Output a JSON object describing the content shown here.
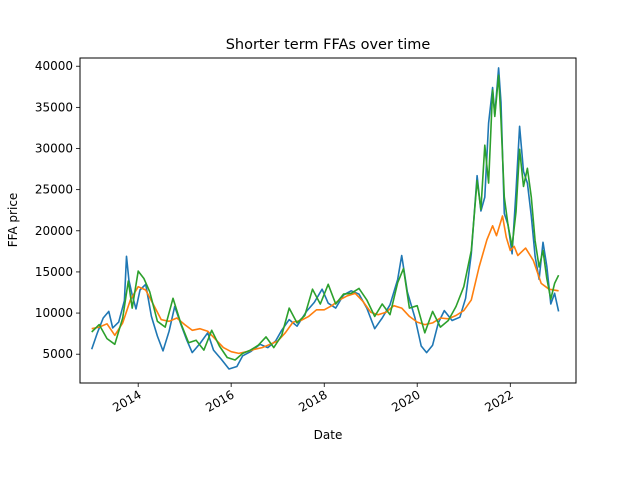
{
  "chart_data": {
    "type": "line",
    "title": "Shorter term FFAs over time",
    "xlabel": "Date",
    "ylabel": "FFA price",
    "xlim": [
      "2012-10-01",
      "2023-06-01"
    ],
    "ylim": [
      1500,
      41000
    ],
    "x_ticks": [
      "2014",
      "2016",
      "2018",
      "2020",
      "2022"
    ],
    "y_ticks": [
      "5000",
      "10000",
      "15000",
      "20000",
      "25000",
      "30000",
      "35000",
      "40000"
    ],
    "grid": false,
    "series": [
      {
        "color": "#1f77b4",
        "points": [
          [
            "2013-01-01",
            5600
          ],
          [
            "2013-02-15",
            7600
          ],
          [
            "2013-04-01",
            9400
          ],
          [
            "2013-05-15",
            10200
          ],
          [
            "2013-06-15",
            8200
          ],
          [
            "2013-08-01",
            8900
          ],
          [
            "2013-09-15",
            11500
          ],
          [
            "2013-10-01",
            16900
          ],
          [
            "2013-10-20",
            14000
          ],
          [
            "2013-11-15",
            12200
          ],
          [
            "2013-12-15",
            10500
          ],
          [
            "2014-01-15",
            12800
          ],
          [
            "2014-03-01",
            13500
          ],
          [
            "2014-04-15",
            9600
          ],
          [
            "2014-06-01",
            7200
          ],
          [
            "2014-07-15",
            5400
          ],
          [
            "2014-09-01",
            7800
          ],
          [
            "2014-10-15",
            10800
          ],
          [
            "2014-12-01",
            8700
          ],
          [
            "2015-01-15",
            6800
          ],
          [
            "2015-03-01",
            5200
          ],
          [
            "2015-05-01",
            6300
          ],
          [
            "2015-07-01",
            7600
          ],
          [
            "2015-08-15",
            5500
          ],
          [
            "2015-10-15",
            4400
          ],
          [
            "2015-12-15",
            3200
          ],
          [
            "2016-02-15",
            3500
          ],
          [
            "2016-04-01",
            4800
          ],
          [
            "2016-06-01",
            5300
          ],
          [
            "2016-08-15",
            6200
          ],
          [
            "2016-10-15",
            5800
          ],
          [
            "2016-12-15",
            6600
          ],
          [
            "2017-02-01",
            7900
          ],
          [
            "2017-04-01",
            9200
          ],
          [
            "2017-06-01",
            8400
          ],
          [
            "2017-08-15",
            10200
          ],
          [
            "2017-10-15",
            11300
          ],
          [
            "2017-12-15",
            12900
          ],
          [
            "2018-02-01",
            11200
          ],
          [
            "2018-04-01",
            10600
          ],
          [
            "2018-06-01",
            12200
          ],
          [
            "2018-08-01",
            12700
          ],
          [
            "2018-10-01",
            12300
          ],
          [
            "2018-12-01",
            10600
          ],
          [
            "2019-02-01",
            8100
          ],
          [
            "2019-04-01",
            9400
          ],
          [
            "2019-06-01",
            11000
          ],
          [
            "2019-08-01",
            14100
          ],
          [
            "2019-09-01",
            17000
          ],
          [
            "2019-10-15",
            12600
          ],
          [
            "2019-12-15",
            9400
          ],
          [
            "2020-02-01",
            6000
          ],
          [
            "2020-03-15",
            5200
          ],
          [
            "2020-05-01",
            6100
          ],
          [
            "2020-06-15",
            8800
          ],
          [
            "2020-08-01",
            10300
          ],
          [
            "2020-10-01",
            9100
          ],
          [
            "2020-12-01",
            9500
          ],
          [
            "2021-01-15",
            11800
          ],
          [
            "2021-03-01",
            17200
          ],
          [
            "2021-04-15",
            26700
          ],
          [
            "2021-05-15",
            22400
          ],
          [
            "2021-06-15",
            24100
          ],
          [
            "2021-07-15",
            33100
          ],
          [
            "2021-08-15",
            37400
          ],
          [
            "2021-09-01",
            34100
          ],
          [
            "2021-10-01",
            39800
          ],
          [
            "2021-10-20",
            35600
          ],
          [
            "2021-11-15",
            22100
          ],
          [
            "2021-12-15",
            20700
          ],
          [
            "2022-01-15",
            17200
          ],
          [
            "2022-02-15",
            24800
          ],
          [
            "2022-03-15",
            32700
          ],
          [
            "2022-04-15",
            27200
          ],
          [
            "2022-05-15",
            25800
          ],
          [
            "2022-06-15",
            21800
          ],
          [
            "2022-07-15",
            16900
          ],
          [
            "2022-08-15",
            14100
          ],
          [
            "2022-09-15",
            18600
          ],
          [
            "2022-10-15",
            15700
          ],
          [
            "2022-11-15",
            11100
          ],
          [
            "2022-12-15",
            12400
          ],
          [
            "2023-01-15",
            10200
          ]
        ]
      },
      {
        "color": "#ff7f0e",
        "points": [
          [
            "2013-01-01",
            8100
          ],
          [
            "2013-03-01",
            8300
          ],
          [
            "2013-05-01",
            8700
          ],
          [
            "2013-07-01",
            7300
          ],
          [
            "2013-09-01",
            8800
          ],
          [
            "2013-11-01",
            11600
          ],
          [
            "2014-01-01",
            13200
          ],
          [
            "2014-03-01",
            12800
          ],
          [
            "2014-05-01",
            11000
          ],
          [
            "2014-07-01",
            9200
          ],
          [
            "2014-09-01",
            9000
          ],
          [
            "2014-11-01",
            9400
          ],
          [
            "2015-01-01",
            8600
          ],
          [
            "2015-03-01",
            7900
          ],
          [
            "2015-05-01",
            8100
          ],
          [
            "2015-07-01",
            7800
          ],
          [
            "2015-09-01",
            6800
          ],
          [
            "2015-11-01",
            5800
          ],
          [
            "2016-01-01",
            5300
          ],
          [
            "2016-03-01",
            5100
          ],
          [
            "2016-05-01",
            5300
          ],
          [
            "2016-07-01",
            5600
          ],
          [
            "2016-09-01",
            5800
          ],
          [
            "2016-11-01",
            6200
          ],
          [
            "2017-01-01",
            6600
          ],
          [
            "2017-03-01",
            7600
          ],
          [
            "2017-05-01",
            8900
          ],
          [
            "2017-07-01",
            9100
          ],
          [
            "2017-09-01",
            9600
          ],
          [
            "2017-11-01",
            10400
          ],
          [
            "2018-01-01",
            10400
          ],
          [
            "2018-03-01",
            10900
          ],
          [
            "2018-05-01",
            11600
          ],
          [
            "2018-07-01",
            12100
          ],
          [
            "2018-09-01",
            12400
          ],
          [
            "2018-11-01",
            11400
          ],
          [
            "2019-01-01",
            10100
          ],
          [
            "2019-03-01",
            9800
          ],
          [
            "2019-05-01",
            10100
          ],
          [
            "2019-07-01",
            10900
          ],
          [
            "2019-09-01",
            10600
          ],
          [
            "2019-11-01",
            9600
          ],
          [
            "2020-01-01",
            8900
          ],
          [
            "2020-03-01",
            8600
          ],
          [
            "2020-05-01",
            8800
          ],
          [
            "2020-07-01",
            9400
          ],
          [
            "2020-09-01",
            9300
          ],
          [
            "2020-11-01",
            9700
          ],
          [
            "2021-01-01",
            10300
          ],
          [
            "2021-03-01",
            11600
          ],
          [
            "2021-05-01",
            15600
          ],
          [
            "2021-07-01",
            18900
          ],
          [
            "2021-08-15",
            20600
          ],
          [
            "2021-09-15",
            19400
          ],
          [
            "2021-11-01",
            21800
          ],
          [
            "2021-12-01",
            19200
          ],
          [
            "2022-01-01",
            17600
          ],
          [
            "2022-02-01",
            18100
          ],
          [
            "2022-03-01",
            17000
          ],
          [
            "2022-05-01",
            17900
          ],
          [
            "2022-07-01",
            16400
          ],
          [
            "2022-09-01",
            13600
          ],
          [
            "2022-11-01",
            12900
          ],
          [
            "2023-01-15",
            12700
          ]
        ]
      },
      {
        "color": "#2ca02c",
        "points": [
          [
            "2013-01-01",
            7700
          ],
          [
            "2013-03-01",
            8600
          ],
          [
            "2013-05-01",
            6900
          ],
          [
            "2013-07-01",
            6200
          ],
          [
            "2013-09-01",
            9400
          ],
          [
            "2013-10-15",
            13900
          ],
          [
            "2013-11-15",
            10600
          ],
          [
            "2014-01-01",
            15100
          ],
          [
            "2014-02-15",
            14200
          ],
          [
            "2014-04-01",
            12600
          ],
          [
            "2014-06-01",
            9000
          ],
          [
            "2014-08-01",
            8300
          ],
          [
            "2014-10-01",
            11800
          ],
          [
            "2014-12-01",
            8800
          ],
          [
            "2015-02-01",
            6400
          ],
          [
            "2015-04-01",
            6700
          ],
          [
            "2015-06-01",
            5500
          ],
          [
            "2015-08-01",
            7900
          ],
          [
            "2015-10-01",
            6000
          ],
          [
            "2015-12-01",
            4600
          ],
          [
            "2016-02-01",
            4300
          ],
          [
            "2016-04-01",
            5100
          ],
          [
            "2016-06-01",
            5500
          ],
          [
            "2016-08-01",
            6100
          ],
          [
            "2016-10-01",
            7100
          ],
          [
            "2016-12-01",
            5800
          ],
          [
            "2017-02-01",
            7300
          ],
          [
            "2017-04-01",
            10600
          ],
          [
            "2017-06-01",
            8800
          ],
          [
            "2017-08-01",
            9700
          ],
          [
            "2017-10-01",
            12900
          ],
          [
            "2017-12-01",
            11100
          ],
          [
            "2018-02-01",
            13500
          ],
          [
            "2018-04-01",
            11100
          ],
          [
            "2018-06-01",
            12300
          ],
          [
            "2018-08-01",
            12400
          ],
          [
            "2018-10-01",
            13000
          ],
          [
            "2018-12-01",
            11600
          ],
          [
            "2019-02-01",
            9600
          ],
          [
            "2019-04-01",
            11100
          ],
          [
            "2019-06-01",
            9800
          ],
          [
            "2019-08-01",
            13700
          ],
          [
            "2019-09-15",
            15400
          ],
          [
            "2019-11-01",
            10600
          ],
          [
            "2020-01-01",
            10900
          ],
          [
            "2020-03-01",
            7600
          ],
          [
            "2020-05-01",
            10200
          ],
          [
            "2020-07-01",
            8300
          ],
          [
            "2020-09-01",
            9100
          ],
          [
            "2020-11-01",
            10800
          ],
          [
            "2021-01-01",
            13200
          ],
          [
            "2021-03-01",
            17600
          ],
          [
            "2021-04-15",
            26100
          ],
          [
            "2021-05-15",
            22600
          ],
          [
            "2021-06-15",
            30400
          ],
          [
            "2021-07-15",
            25800
          ],
          [
            "2021-08-15",
            37100
          ],
          [
            "2021-09-01",
            33900
          ],
          [
            "2021-10-01",
            38900
          ],
          [
            "2021-10-20",
            33400
          ],
          [
            "2021-11-15",
            24100
          ],
          [
            "2021-12-15",
            20600
          ],
          [
            "2022-01-15",
            18100
          ],
          [
            "2022-02-15",
            22300
          ],
          [
            "2022-03-15",
            29900
          ],
          [
            "2022-04-15",
            25400
          ],
          [
            "2022-05-15",
            27600
          ],
          [
            "2022-06-15",
            24100
          ],
          [
            "2022-07-15",
            18800
          ],
          [
            "2022-08-15",
            15600
          ],
          [
            "2022-09-15",
            17600
          ],
          [
            "2022-10-15",
            14200
          ],
          [
            "2022-11-15",
            11700
          ],
          [
            "2022-12-15",
            13600
          ],
          [
            "2023-01-15",
            14600
          ]
        ]
      }
    ]
  }
}
